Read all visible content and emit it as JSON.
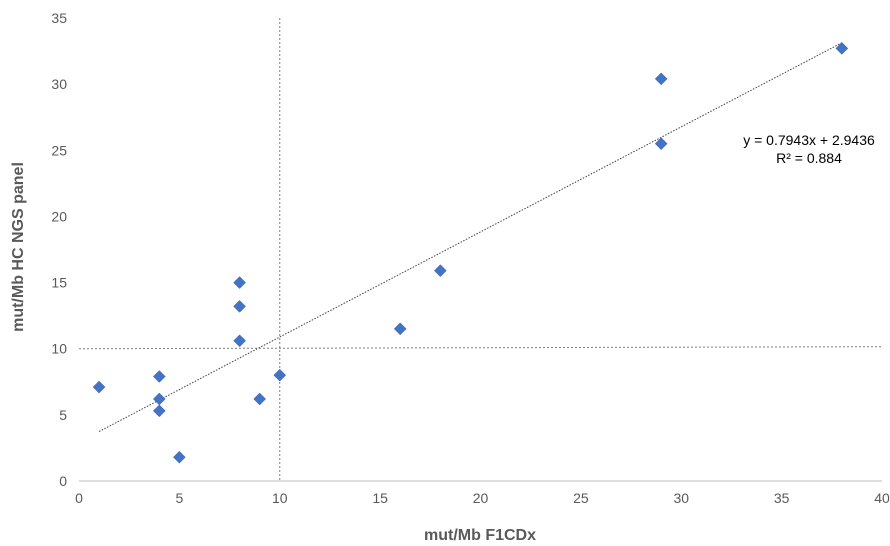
{
  "chart_data": {
    "type": "scatter",
    "xlabel": "mut/Mb F1CDx",
    "ylabel": "mut/Mb  HC NGS panel",
    "xlim": [
      0,
      40
    ],
    "ylim": [
      0,
      35
    ],
    "x_ticks": [
      0,
      5,
      10,
      15,
      20,
      25,
      30,
      35,
      40
    ],
    "y_ticks": [
      0,
      5,
      10,
      15,
      20,
      25,
      30,
      35
    ],
    "grid": false,
    "series": [
      {
        "color": "#4472C4",
        "marker": "diamond",
        "points": [
          {
            "x": 1,
            "y": 7.1
          },
          {
            "x": 4,
            "y": 7.9
          },
          {
            "x": 4,
            "y": 6.2
          },
          {
            "x": 4,
            "y": 5.3
          },
          {
            "x": 5,
            "y": 1.8
          },
          {
            "x": 8,
            "y": 15.0
          },
          {
            "x": 8,
            "y": 13.2
          },
          {
            "x": 8,
            "y": 10.6
          },
          {
            "x": 9,
            "y": 6.2
          },
          {
            "x": 10,
            "y": 8.0
          },
          {
            "x": 16,
            "y": 11.5
          },
          {
            "x": 18,
            "y": 15.9
          },
          {
            "x": 29,
            "y": 30.4
          },
          {
            "x": 29,
            "y": 25.5
          },
          {
            "x": 38,
            "y": 32.7
          }
        ]
      }
    ],
    "trendline": {
      "slope": 0.7943,
      "intercept": 2.9436,
      "x_range": [
        1,
        38
      ],
      "equation": "y = 0.7943x + 2.9436",
      "r2": "R² = 0.884"
    },
    "reference_lines": [
      {
        "orientation": "vertical",
        "value": 10
      },
      {
        "orientation": "horizontal",
        "value": 10
      }
    ]
  }
}
